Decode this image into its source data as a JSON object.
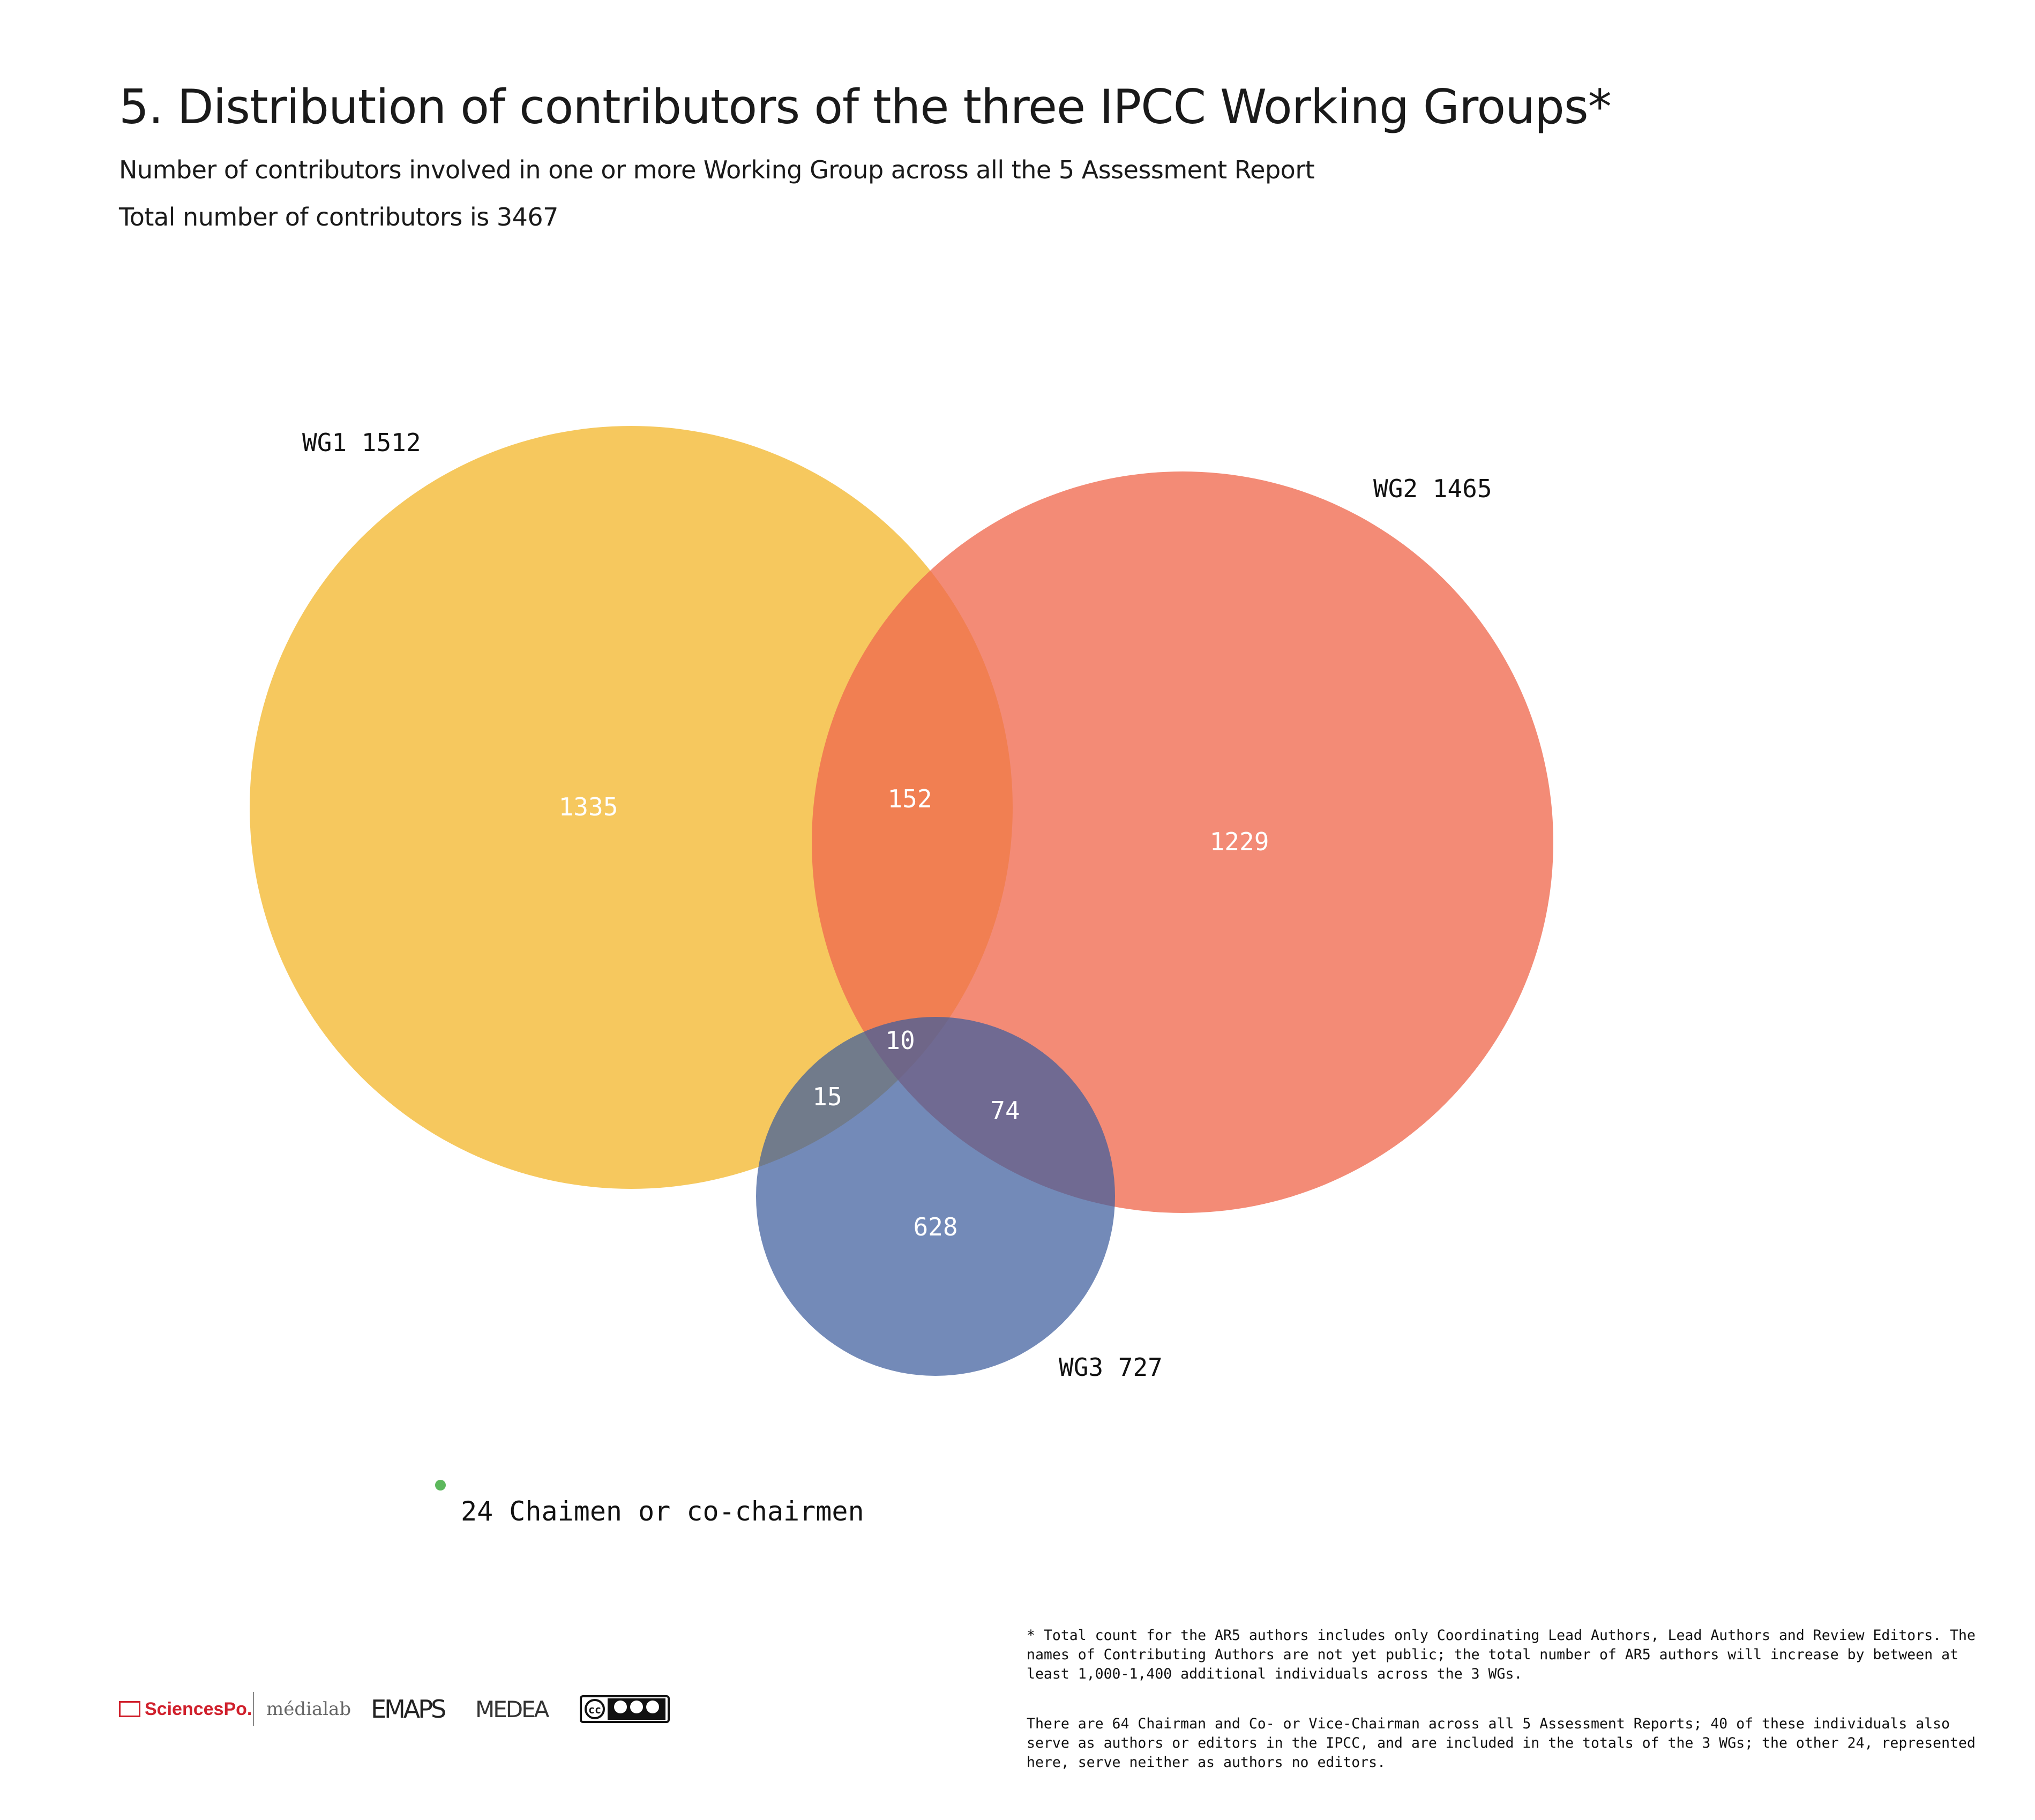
{
  "chart_data": {
    "type": "venn",
    "title": "5. Distribution of contributors of the three IPCC Working Groups*",
    "subtitle": "Number of contributors involved in one or more Working Group across all the 5 Assessment Report",
    "subtitle2": "Total number of contributors is 3467",
    "sets": [
      {
        "name": "WG1",
        "label": "WG1 1512",
        "total": 1512,
        "color": "#f5c555"
      },
      {
        "name": "WG2",
        "label": "WG2 1465",
        "total": 1465,
        "color": "#ef6a4f"
      },
      {
        "name": "WG3",
        "label": "WG3 727",
        "total": 727,
        "color": "#3d5d9c"
      }
    ],
    "regions": [
      {
        "sets": [
          "WG1"
        ],
        "value": "1335"
      },
      {
        "sets": [
          "WG2"
        ],
        "value": "1229"
      },
      {
        "sets": [
          "WG3"
        ],
        "value": "628"
      },
      {
        "sets": [
          "WG1",
          "WG2"
        ],
        "value": "152"
      },
      {
        "sets": [
          "WG1",
          "WG3"
        ],
        "value": "15"
      },
      {
        "sets": [
          "WG2",
          "WG3"
        ],
        "value": "74"
      },
      {
        "sets": [
          "WG1",
          "WG2",
          "WG3"
        ],
        "value": "10"
      }
    ],
    "extra": {
      "label": "24 Chaimen or co-chairmen",
      "value": 24,
      "color": "#5cb85c"
    }
  },
  "footnotes": [
    "* Total count for the AR5 authors includes only Coordinating Lead Authors, Lead Authors and Review Editors. The names of Contributing Authors are not yet public; the total number of AR5 authors will increase by between at least 1,000-1,400 additional individuals across the 3 WGs.",
    "There are 64 Chairman and Co- or Vice-Chairman across all 5 Assessment Reports; 40 of these individuals also serve as authors or editors in the IPCC, and are included in the totals of the 3 WGs; the other 24, represented here, serve neither as authors no editors."
  ],
  "logos": {
    "sciencespo": "SciencesPo.",
    "medialab": "médialab",
    "emaps": "EMAPS",
    "medea": "MEDEA",
    "cc": "cc by-nc-nd"
  }
}
